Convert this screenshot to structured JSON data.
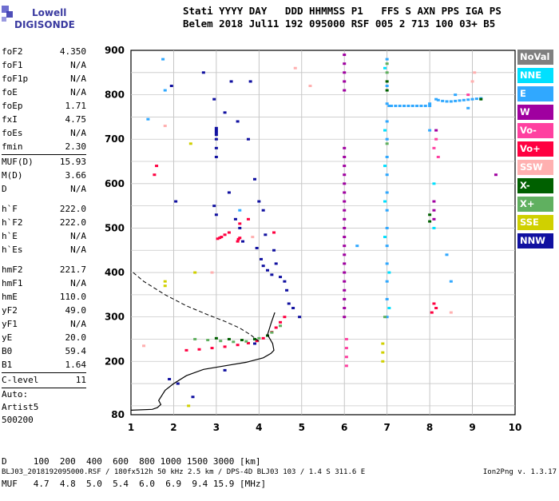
{
  "logo": {
    "line1": "Lowell",
    "line2": "DIGISONDE"
  },
  "header": {
    "line1": "Stati YYYY DAY   DDD HHMMSS P1   FFS S AXN PPS IGA PS",
    "line2": "Belem 2018 Jul11 192 095000 RSF 005 2 713 100 03+ B5"
  },
  "params": {
    "group1": [
      {
        "name": "foF2",
        "value": "4.350"
      },
      {
        "name": "foF1",
        "value": "N/A"
      },
      {
        "name": "foF1p",
        "value": "N/A"
      },
      {
        "name": "foE",
        "value": "N/A"
      },
      {
        "name": "foEp",
        "value": "1.71"
      },
      {
        "name": "fxI",
        "value": "4.75"
      },
      {
        "name": "foEs",
        "value": "N/A"
      },
      {
        "name": "fmin",
        "value": "2.30"
      }
    ],
    "group2": [
      {
        "name": "MUF(D)",
        "value": "15.93"
      },
      {
        "name": "M(D)",
        "value": "3.66"
      },
      {
        "name": "D",
        "value": "N/A"
      }
    ],
    "group3": [
      {
        "name": "h`F",
        "value": "222.0"
      },
      {
        "name": "h`F2",
        "value": "222.0"
      },
      {
        "name": "h`E",
        "value": "N/A"
      },
      {
        "name": "h`Es",
        "value": "N/A"
      }
    ],
    "group4": [
      {
        "name": "hmF2",
        "value": "221.7"
      },
      {
        "name": "hmF1",
        "value": "N/A"
      },
      {
        "name": "hmE",
        "value": "110.0"
      },
      {
        "name": "yF2",
        "value": "49.0"
      },
      {
        "name": "yF1",
        "value": "N/A"
      },
      {
        "name": "yE",
        "value": "20.0"
      },
      {
        "name": "B0",
        "value": "59.4"
      },
      {
        "name": "B1",
        "value": "1.64"
      }
    ],
    "clevel": {
      "name": "C-level",
      "value": "11"
    },
    "auto": [
      "Auto:",
      "Artist5",
      "500200"
    ]
  },
  "legend": [
    {
      "label": "NoVal",
      "color": "#808080"
    },
    {
      "label": "NNE",
      "color": "#00e0ff"
    },
    {
      "label": "E",
      "color": "#30a8ff"
    },
    {
      "label": "W",
      "color": "#a000a0"
    },
    {
      "label": "Vo-",
      "color": "#ff40a0"
    },
    {
      "label": "Vo+",
      "color": "#ff0040"
    },
    {
      "label": "SSW",
      "color": "#ffb0b0"
    },
    {
      "label": "X-",
      "color": "#006000"
    },
    {
      "label": "X+",
      "color": "#60b060"
    },
    {
      "label": "SSE",
      "color": "#d0d000"
    },
    {
      "label": "NNW",
      "color": "#1010a0"
    }
  ],
  "footer": {
    "line1": "D     100  200  400  600  800 1000 1500 3000 [km]",
    "line2": "MUF   4.7  4.8  5.0  5.4  6.0  6.9  9.4 15.9 [MHz]"
  },
  "status_line": "BLJ03_2018192095000.RSF / 180fx512h 50 kHz 2.5 km / DPS-4D BLJ03 103 / 1.4 S 311.6 E",
  "version": "Ion2Png v. 1.3.17",
  "chart_data": {
    "type": "scatter",
    "xlim": [
      1,
      10
    ],
    "ylim": [
      80,
      900
    ],
    "x_ticks": [
      1,
      2,
      3,
      4,
      5,
      6,
      7,
      8,
      9,
      10
    ],
    "y_ticks": [
      80,
      200,
      300,
      400,
      500,
      600,
      700,
      800,
      900
    ],
    "grid": true,
    "legend_position": "right",
    "profile_solid": {
      "x": [
        1.0,
        1.5,
        1.62,
        1.7,
        1.65,
        1.8,
        2.0,
        2.3,
        2.7,
        3.2,
        3.7,
        4.1,
        4.28,
        4.35,
        4.32,
        4.2,
        4.28,
        4.37
      ],
      "y": [
        90,
        92,
        96,
        103,
        112,
        135,
        150,
        168,
        182,
        190,
        198,
        208,
        218,
        225,
        240,
        260,
        285,
        310
      ]
    },
    "profile_dashed": {
      "x": [
        1.05,
        1.3,
        1.8,
        2.3,
        2.8,
        3.2,
        3.55,
        3.8,
        4.0
      ],
      "y": [
        400,
        380,
        350,
        325,
        305,
        290,
        275,
        260,
        245
      ]
    },
    "traces": [
      {
        "series": "Vo+",
        "x": [
          2.3,
          2.6,
          2.9,
          3.2,
          3.5,
          3.75,
          3.95,
          4.1,
          4.2,
          4.3,
          4.4,
          4.5,
          4.6
        ],
        "y": [
          225,
          227,
          230,
          233,
          237,
          241,
          246,
          252,
          258,
          266,
          276,
          288,
          300
        ]
      },
      {
        "series": "X+",
        "x": [
          2.5,
          2.8,
          3.1,
          3.4,
          3.7,
          4.0,
          4.3,
          4.5
        ],
        "y": [
          250,
          248,
          246,
          244,
          245,
          252,
          265,
          280
        ]
      },
      {
        "series": "X-",
        "x": [
          3.0,
          3.3,
          3.6,
          3.9,
          4.2
        ],
        "y": [
          252,
          250,
          248,
          250,
          258
        ]
      },
      {
        "series": "Vo+",
        "x": [
          3.03,
          3.08,
          3.12,
          3.2,
          3.3,
          3.55,
          3.75
        ],
        "y": [
          476,
          478,
          480,
          485,
          490,
          510,
          520
        ]
      },
      {
        "series": "NNW",
        "x": [
          2.7,
          2.95,
          3.2,
          3.35,
          3.5,
          3.75,
          3.9,
          4.0,
          4.1,
          4.15,
          4.35,
          4.4,
          4.5,
          4.65,
          4.7,
          4.95,
          1.9,
          2.1,
          2.45,
          3.8
        ],
        "y": [
          850,
          790,
          760,
          830,
          740,
          700,
          610,
          560,
          540,
          485,
          450,
          420,
          390,
          360,
          330,
          300,
          160,
          150,
          120,
          830
        ]
      },
      {
        "series": "NNW",
        "x": [
          1.95,
          2.05,
          2.95,
          3.0,
          3.3,
          3.45,
          3.55,
          3.62,
          3.95,
          4.05,
          4.1,
          4.2,
          4.3,
          4.6,
          4.8,
          3.9,
          3.2
        ],
        "y": [
          820,
          560,
          550,
          530,
          580,
          520,
          500,
          470,
          455,
          430,
          415,
          405,
          395,
          380,
          320,
          240,
          180
        ]
      },
      {
        "series": "NNW",
        "x": [
          3.0,
          3.0,
          3.0,
          3.0,
          3.0,
          3.0,
          3.0
        ],
        "y": [
          660,
          680,
          700,
          710,
          715,
          720,
          725
        ]
      },
      {
        "series": "E",
        "x": [
          1.4,
          1.75,
          1.8,
          3.55,
          6.3,
          7.0,
          7.0,
          7.0,
          7.0,
          7.0,
          7.0,
          7.0,
          7.0,
          7.0,
          7.0,
          7.0,
          7.0,
          7.0,
          7.0,
          7.0,
          8.4,
          8.5,
          8.6,
          8.9,
          8.0,
          8.0
        ],
        "y": [
          745,
          880,
          810,
          540,
          460,
          880,
          820,
          780,
          740,
          700,
          660,
          620,
          580,
          540,
          500,
          460,
          420,
          380,
          340,
          300,
          440,
          380,
          800,
          770,
          780,
          720
        ]
      },
      {
        "series": "E",
        "x": [
          7.05,
          7.1,
          7.2,
          7.3,
          7.4,
          7.5,
          7.6,
          7.7,
          7.8,
          7.9,
          8.0
        ],
        "y": [
          775,
          775,
          775,
          775,
          775,
          775,
          775,
          775,
          775,
          775,
          775
        ]
      },
      {
        "series": "E",
        "x": [
          8.15,
          8.2,
          8.3,
          8.4,
          8.5,
          8.6,
          8.7,
          8.8,
          8.9,
          9.0,
          9.1,
          9.2
        ],
        "y": [
          790,
          788,
          786,
          785,
          785,
          786,
          787,
          788,
          789,
          790,
          791,
          792
        ]
      },
      {
        "series": "W",
        "x": [
          6.0,
          6.0,
          6.0,
          6.0,
          6.0,
          6.0,
          6.0,
          6.0,
          6.0,
          6.0,
          6.0,
          6.0,
          6.0,
          6.0,
          6.0,
          6.0,
          6.0,
          6.0,
          6.0,
          6.0,
          6.0,
          6.0,
          6.0,
          6.0,
          6.0
        ],
        "y": [
          680,
          660,
          640,
          620,
          600,
          580,
          560,
          540,
          520,
          500,
          480,
          460,
          440,
          420,
          400,
          380,
          360,
          340,
          320,
          300,
          890,
          870,
          850,
          830,
          810
        ]
      },
      {
        "series": "W",
        "x": [
          8.1,
          8.1,
          8.1,
          8.15,
          9.55
        ],
        "y": [
          560,
          540,
          520,
          720,
          620
        ]
      },
      {
        "series": "Vo-",
        "x": [
          8.1,
          8.15,
          8.2,
          8.9,
          6.05,
          6.05,
          6.05,
          6.05
        ],
        "y": [
          680,
          700,
          660,
          800,
          250,
          230,
          210,
          190
        ]
      },
      {
        "series": "Vo+",
        "x": [
          8.1,
          8.15,
          8.05,
          3.5,
          3.52,
          3.55,
          1.6,
          1.55,
          4.35
        ],
        "y": [
          330,
          320,
          310,
          470,
          475,
          478,
          640,
          620,
          490
        ]
      },
      {
        "series": "SSW",
        "x": [
          1.3,
          1.8,
          2.9,
          3.85,
          5.2,
          8.5,
          9.0,
          9.05,
          4.85
        ],
        "y": [
          235,
          730,
          400,
          480,
          820,
          310,
          830,
          850,
          860
        ]
      },
      {
        "series": "SSE",
        "x": [
          2.4,
          2.5,
          2.35,
          6.9,
          6.9,
          6.9,
          1.8,
          1.8
        ],
        "y": [
          690,
          400,
          100,
          240,
          220,
          200,
          380,
          370
        ]
      },
      {
        "series": "NNE",
        "x": [
          6.95,
          6.95,
          6.95,
          6.95,
          6.95,
          7.05,
          7.05,
          8.1,
          8.1
        ],
        "y": [
          860,
          720,
          640,
          560,
          480,
          400,
          320,
          600,
          500
        ]
      },
      {
        "series": "X-",
        "x": [
          8.0,
          8.0,
          7.0,
          7.0,
          9.2
        ],
        "y": [
          530,
          515,
          830,
          810,
          790
        ]
      },
      {
        "series": "X+",
        "x": [
          7.0,
          7.0,
          7.0,
          6.95
        ],
        "y": [
          870,
          850,
          690,
          300
        ]
      }
    ]
  }
}
